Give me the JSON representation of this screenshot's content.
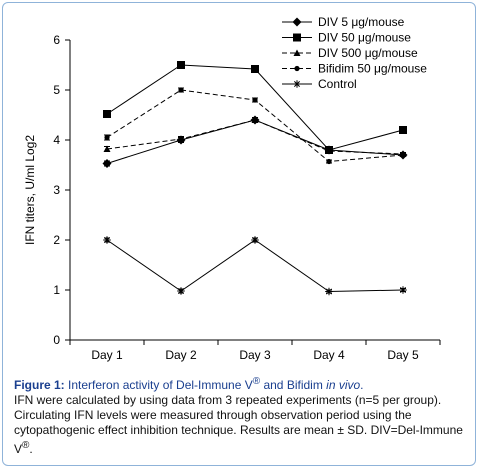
{
  "chart_data": {
    "type": "line",
    "categories": [
      "Day 1",
      "Day 2",
      "Day 3",
      "Day 4",
      "Day 5"
    ],
    "ylabel": "IFN titers, U/ml Log2",
    "xlabel": "",
    "ylim": [
      0,
      6
    ],
    "yticks": [
      "0",
      "1",
      "2",
      "3",
      "4",
      "5",
      "6"
    ],
    "legend_position": "top-right",
    "series": [
      {
        "name": "DIV 5 μg/mouse",
        "values": [
          3.53,
          4.0,
          4.4,
          3.8,
          3.7
        ],
        "errors": [
          0.05,
          0.05,
          0.05,
          0.03,
          0.03
        ],
        "marker": "diamond",
        "dash": "solid"
      },
      {
        "name": "DIV 50 μg/mouse",
        "values": [
          4.52,
          5.5,
          5.42,
          3.8,
          4.2
        ],
        "errors": [
          0,
          0,
          0,
          0,
          0
        ],
        "marker": "square",
        "dash": "solid"
      },
      {
        "name": "DIV 500 μg/mouse",
        "values": [
          3.82,
          4.02,
          4.4,
          3.78,
          3.72
        ],
        "errors": [
          0.05,
          0.05,
          0.05,
          0.03,
          0.03
        ],
        "marker": "triangle",
        "dash": "dashed"
      },
      {
        "name": "Bifidim 50 μg/mouse",
        "values": [
          4.05,
          5.0,
          4.8,
          3.57,
          3.7
        ],
        "errors": [
          0.05,
          0.04,
          0.04,
          0.03,
          0.03
        ],
        "marker": "circle",
        "dash": "dashed"
      },
      {
        "name": "Control",
        "values": [
          2.0,
          0.98,
          2.0,
          0.97,
          1.0
        ],
        "errors": [
          0.04,
          0.04,
          0.04,
          0.03,
          0.03
        ],
        "marker": "asterisk",
        "dash": "solid"
      }
    ]
  },
  "caption": {
    "label": "Figure 1:",
    "title": " Interferon activity of Del-Immune V",
    "title_sup": "®",
    "title_mid": " and Bifidim ",
    "title_italic": "in vivo",
    "title_end": ".",
    "body": "IFN were calculated by using data from 3 repeated experiments (n=5 per group). Circulating IFN levels were measured through observation period using the cytopathogenic effect inhibition technique. Results are mean ± SD. DIV=Del-Immune V",
    "body_sup": "®",
    "body_end": "."
  }
}
